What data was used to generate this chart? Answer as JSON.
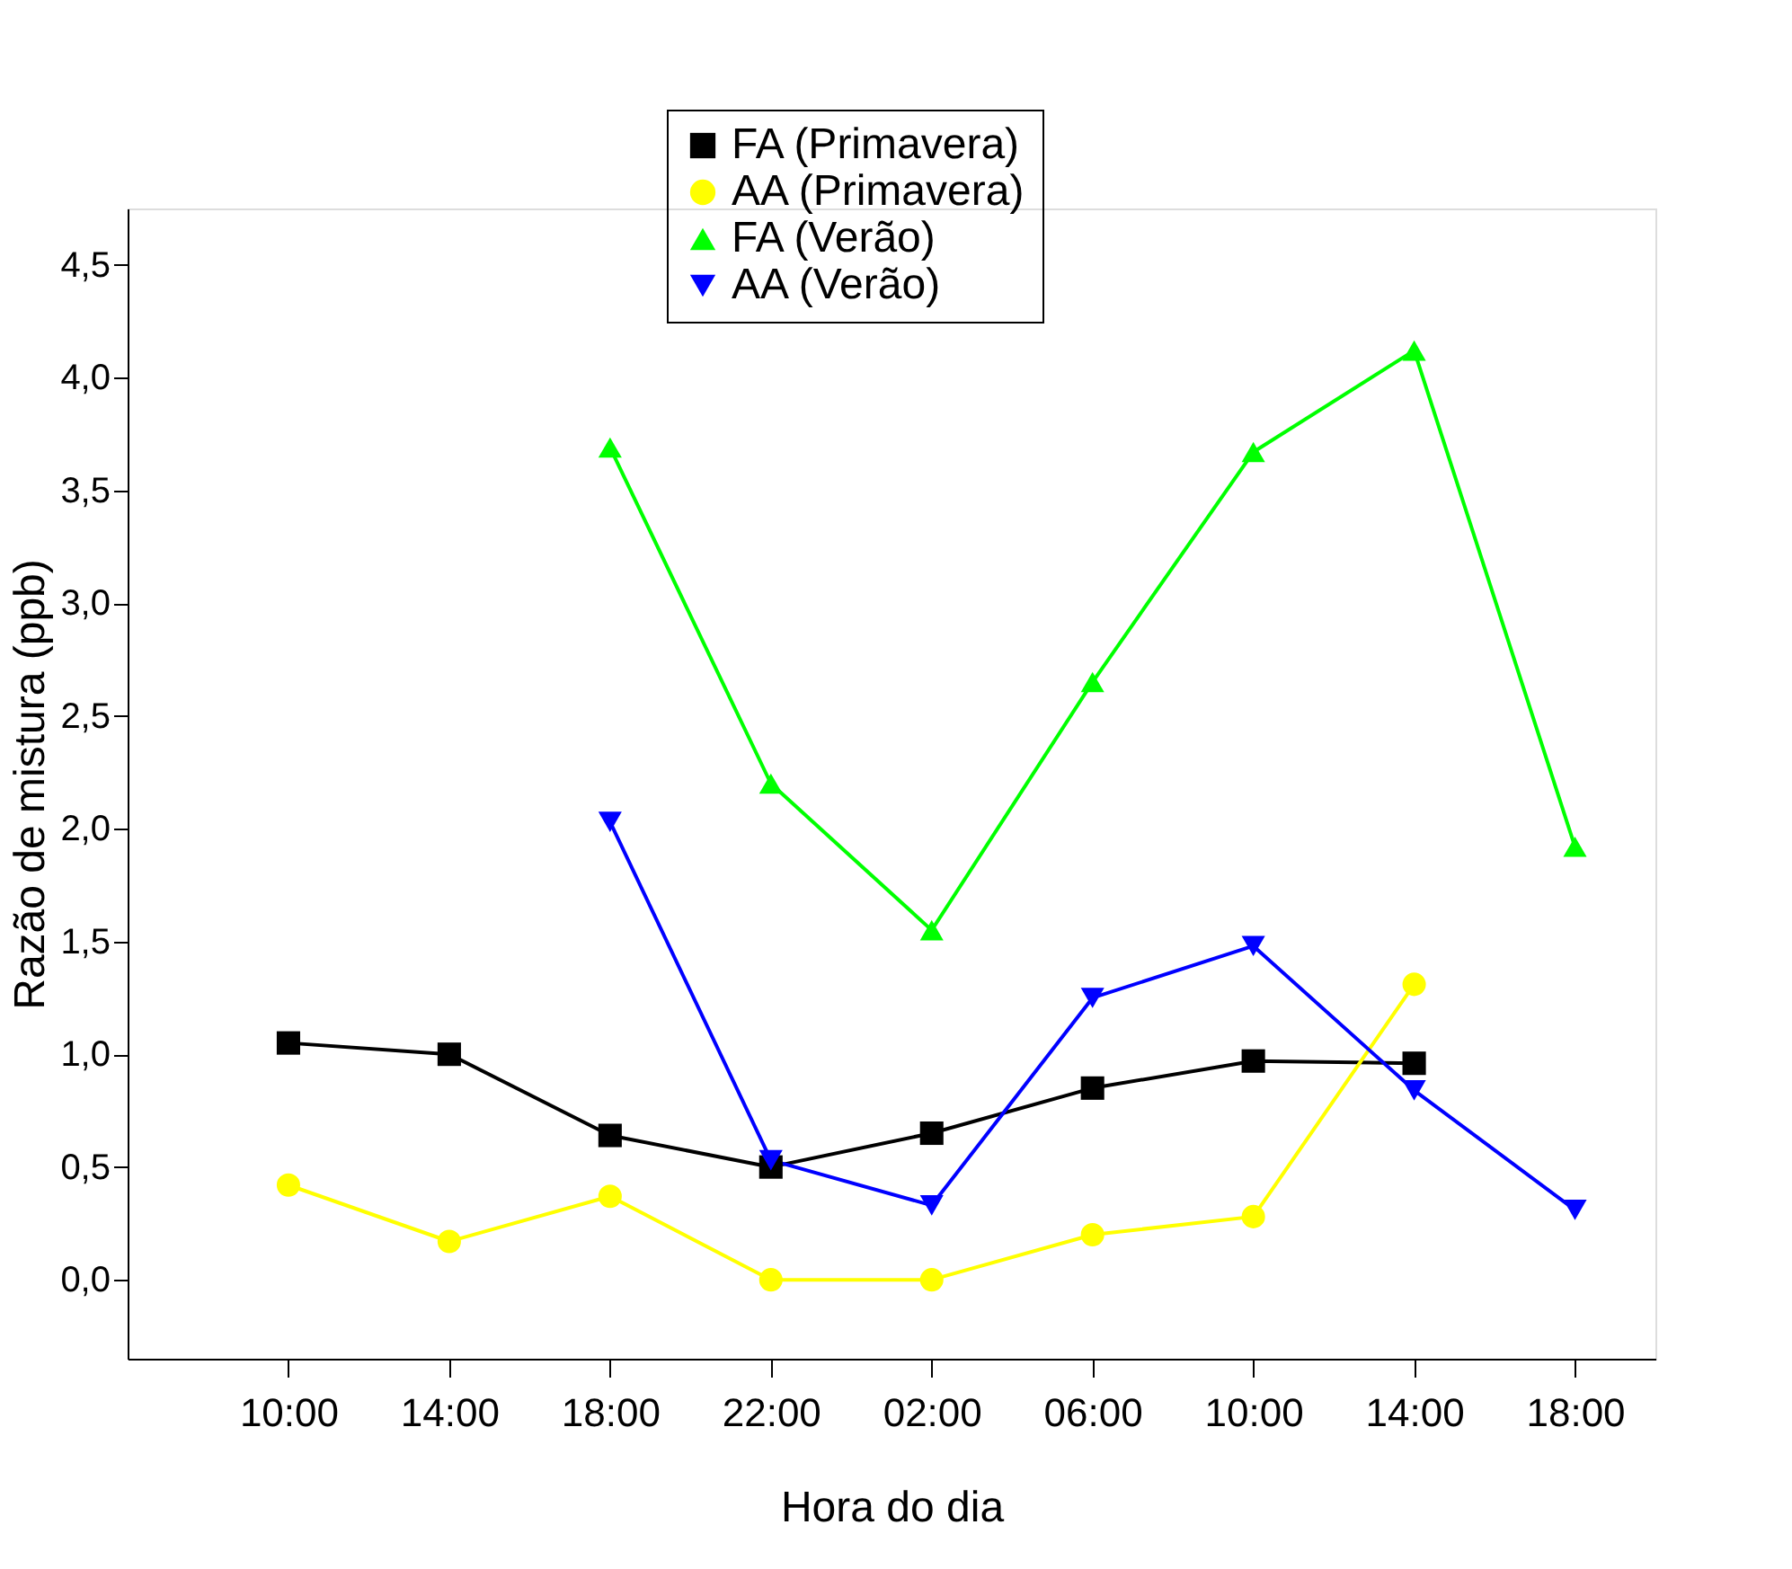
{
  "chart_data": {
    "type": "line",
    "xlabel": "Hora do dia",
    "ylabel": "Razão de mistura (ppb)",
    "categories": [
      "10:00",
      "14:00",
      "18:00",
      "22:00",
      "02:00",
      "06:00",
      "10:00",
      "14:00",
      "18:00"
    ],
    "ylim": [
      -0.35,
      4.75
    ],
    "yticks": [
      {
        "value": 0,
        "label": "0,0"
      },
      {
        "value": 0.5,
        "label": "0,5"
      },
      {
        "value": 1,
        "label": "1,0"
      },
      {
        "value": 1.5,
        "label": "1,5"
      },
      {
        "value": 2,
        "label": "2,0"
      },
      {
        "value": 2.5,
        "label": "2,5"
      },
      {
        "value": 3,
        "label": "3,0"
      },
      {
        "value": 3.5,
        "label": "3,5"
      },
      {
        "value": 4,
        "label": "4,0"
      },
      {
        "value": 4.5,
        "label": "4,5"
      }
    ],
    "grid": false,
    "legend": "top",
    "line_style": "solid",
    "series": [
      {
        "name": "FA (Primavera)",
        "color": "#000000",
        "marker": "square",
        "values": [
          1.05,
          1.0,
          0.64,
          0.5,
          0.65,
          0.85,
          0.97,
          0.96,
          null
        ]
      },
      {
        "name": "AA (Primavera)",
        "color": "#ffff00",
        "marker": "circle",
        "values": [
          0.42,
          0.17,
          0.37,
          0.0,
          0.0,
          0.2,
          0.28,
          1.31,
          null
        ]
      },
      {
        "name": "FA (Verão)",
        "color": "#00ff00",
        "marker": "triangle",
        "values": [
          null,
          null,
          3.69,
          2.2,
          1.55,
          2.65,
          3.67,
          4.12,
          1.92
        ]
      },
      {
        "name": "AA (Verão)",
        "color": "#0000ff",
        "marker": "triangle-down",
        "values": [
          null,
          null,
          2.03,
          0.53,
          0.33,
          1.25,
          1.48,
          0.84,
          0.31
        ]
      }
    ]
  }
}
